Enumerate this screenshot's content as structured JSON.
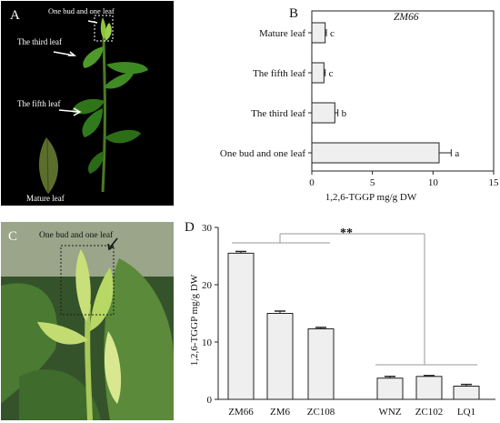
{
  "panels": {
    "a": {
      "letter": "A",
      "labels": {
        "bud": "One bud and one leaf",
        "third": "The third leaf",
        "fifth": "The fifth leaf",
        "mature": "Mature leaf"
      }
    },
    "c": {
      "letter": "C",
      "labels": {
        "bud": "One bud and one leaf"
      }
    }
  },
  "chart_data": [
    {
      "panel": "B",
      "type": "bar",
      "orientation": "horizontal",
      "title": "ZM66",
      "categories": [
        "Mature leaf",
        "The fifth leaf",
        "The third leaf",
        "One bud and one leaf"
      ],
      "values": [
        1.1,
        1.0,
        1.9,
        10.5
      ],
      "errors": [
        0.1,
        0.1,
        0.25,
        1.0
      ],
      "significance": [
        "c",
        "c",
        "b",
        "a"
      ],
      "xlabel": "1,2,6-TGGP    mg/g DW",
      "xlim": [
        0,
        15
      ],
      "xticks": [
        0,
        5,
        10,
        15
      ],
      "bar_color": "#efefef"
    },
    {
      "panel": "D",
      "type": "bar",
      "orientation": "vertical",
      "categories": [
        "ZM66",
        "ZM6",
        "ZC108",
        "WNZ",
        "ZC102",
        "LQ1"
      ],
      "values": [
        25.5,
        15.0,
        12.3,
        3.7,
        4.0,
        2.3
      ],
      "errors": [
        0.3,
        0.4,
        0.25,
        0.3,
        0.15,
        0.3
      ],
      "ylabel": "1,2,6-TGGP   mg/g DW",
      "ylim": [
        0,
        30
      ],
      "yticks": [
        0,
        10,
        20,
        30
      ],
      "annotation": "**",
      "bar_color": "#efefef"
    }
  ]
}
